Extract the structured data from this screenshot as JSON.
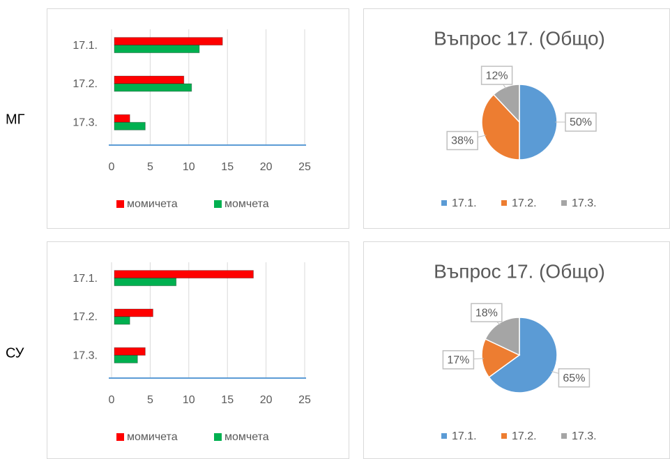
{
  "row_labels": [
    "МГ",
    "СУ"
  ],
  "chart_data": [
    {
      "type": "bar",
      "orientation": "horizontal",
      "categories": [
        "17.1.",
        "17.2.",
        "17.3."
      ],
      "series": [
        {
          "name": "момичета",
          "color": "#ff0000",
          "values": [
            14,
            9,
            2
          ]
        },
        {
          "name": "момчета",
          "color": "#00b050",
          "values": [
            11,
            10,
            4
          ]
        }
      ],
      "xlim": [
        0,
        25
      ],
      "xticks": [
        0,
        5,
        10,
        15,
        20,
        25
      ],
      "grid": true,
      "legend": "bottom"
    },
    {
      "type": "pie",
      "title": "Въпрос 17. (Общо)",
      "categories": [
        "17.1.",
        "17.2.",
        "17.3."
      ],
      "values": [
        50,
        38,
        12
      ],
      "value_labels": [
        "50%",
        "38%",
        "12%"
      ],
      "colors": [
        "#5b9bd5",
        "#ed7d31",
        "#a5a5a5"
      ],
      "legend": "bottom"
    },
    {
      "type": "bar",
      "orientation": "horizontal",
      "categories": [
        "17.1.",
        "17.2.",
        "17.3."
      ],
      "series": [
        {
          "name": "момичета",
          "color": "#ff0000",
          "values": [
            18,
            5,
            4
          ]
        },
        {
          "name": "момчета",
          "color": "#00b050",
          "values": [
            8,
            2,
            3
          ]
        }
      ],
      "xlim": [
        0,
        25
      ],
      "xticks": [
        0,
        5,
        10,
        15,
        20,
        25
      ],
      "grid": true,
      "legend": "bottom"
    },
    {
      "type": "pie",
      "title": "Въпрос 17. (Общо)",
      "categories": [
        "17.1.",
        "17.2.",
        "17.3."
      ],
      "values": [
        65,
        17,
        18
      ],
      "value_labels": [
        "65%",
        "17%",
        "18%"
      ],
      "colors": [
        "#5b9bd5",
        "#ed7d31",
        "#a5a5a5"
      ],
      "legend": "bottom"
    }
  ]
}
